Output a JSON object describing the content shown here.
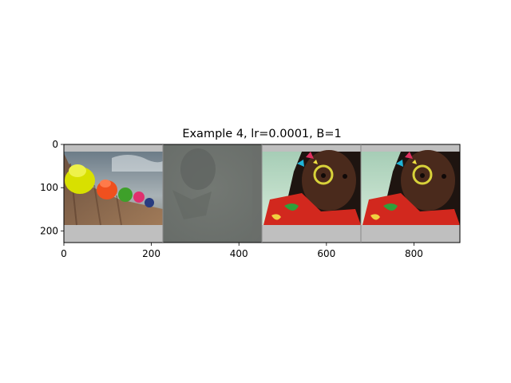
{
  "figure": {
    "title": "Example 4, lr=0.0001, B=1"
  },
  "axes": {
    "x_range": [
      0,
      905
    ],
    "y_range": [
      227,
      0
    ],
    "x_ticks": [
      {
        "value": 0,
        "label": "0"
      },
      {
        "value": 200,
        "label": "200"
      },
      {
        "value": 400,
        "label": "400"
      },
      {
        "value": 600,
        "label": "600"
      },
      {
        "value": 800,
        "label": "800"
      }
    ],
    "y_ticks": [
      {
        "value": 0,
        "label": "0"
      },
      {
        "value": 100,
        "label": "100"
      },
      {
        "value": 200,
        "label": "200"
      }
    ]
  },
  "panels": [
    {
      "name": "panel-hats",
      "x_start": 0,
      "x_end": 226
    },
    {
      "name": "panel-gray",
      "x_start": 226,
      "x_end": 452
    },
    {
      "name": "panel-girl-1",
      "x_start": 452,
      "x_end": 678
    },
    {
      "name": "panel-girl-2",
      "x_start": 678,
      "x_end": 905
    }
  ],
  "colors": {
    "letterbox": "#bfbfbf",
    "gray_panel": "#6f7470",
    "sky": "#8c98a0",
    "sand": "#8b6c52",
    "hat_yellow": "#d8e000",
    "hat_orange": "#f0501e",
    "hat_green": "#3ea02a",
    "hat_pink": "#e0306e",
    "hat_navy": "#283c80",
    "skin": "#4a2a1c",
    "hair": "#1e1410",
    "shirt_red": "#d2281e",
    "backdrop_green": "#b8d8c4"
  }
}
